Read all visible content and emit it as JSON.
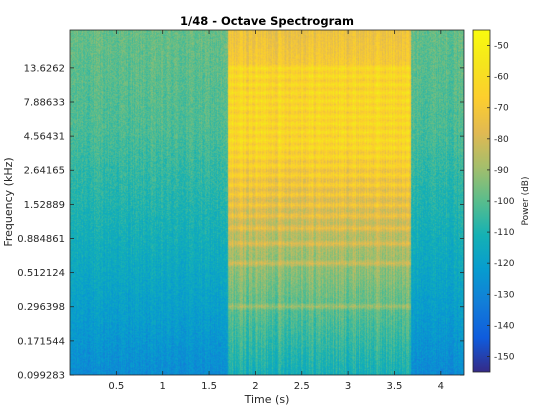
{
  "chart_data": {
    "type": "heatmap",
    "title": "1/48 - Octave Spectrogram",
    "xlabel": "Time (s)",
    "ylabel": "Frequency (kHz)",
    "xlim": [
      0,
      4.25
    ],
    "xticks": [
      {
        "value": 0.5,
        "label": "0.5"
      },
      {
        "value": 1,
        "label": "1"
      },
      {
        "value": 1.5,
        "label": "1.5"
      },
      {
        "value": 2,
        "label": "2"
      },
      {
        "value": 2.5,
        "label": "2.5"
      },
      {
        "value": 3,
        "label": "3"
      },
      {
        "value": 3.5,
        "label": "3.5"
      },
      {
        "value": 4,
        "label": "4"
      }
    ],
    "y_scale": "log",
    "ylim": [
      0.099283,
      25
    ],
    "yticks": [
      {
        "value": 0.099283,
        "label": "0.099283"
      },
      {
        "value": 0.171544,
        "label": "0.171544"
      },
      {
        "value": 0.296398,
        "label": "0.296398"
      },
      {
        "value": 0.512124,
        "label": "0.512124"
      },
      {
        "value": 0.884861,
        "label": "0.884861"
      },
      {
        "value": 1.52889,
        "label": "1.52889"
      },
      {
        "value": 2.64165,
        "label": "2.64165"
      },
      {
        "value": 4.56431,
        "label": "4.56431"
      },
      {
        "value": 7.88633,
        "label": "7.88633"
      },
      {
        "value": 13.6262,
        "label": "13.6262"
      }
    ],
    "colorbar": {
      "label": "Power (dB)",
      "range": [
        -155,
        -45
      ],
      "colormap": "parula",
      "ticks": [
        {
          "value": -50,
          "label": "-50"
        },
        {
          "value": -60,
          "label": "-60"
        },
        {
          "value": -70,
          "label": "-70"
        },
        {
          "value": -80,
          "label": "-80"
        },
        {
          "value": -90,
          "label": "-90"
        },
        {
          "value": -100,
          "label": "-100"
        },
        {
          "value": -110,
          "label": "-110"
        },
        {
          "value": -120,
          "label": "-120"
        },
        {
          "value": -130,
          "label": "-130"
        },
        {
          "value": -140,
          "label": "-140"
        },
        {
          "value": -150,
          "label": "-150"
        }
      ]
    },
    "regions": [
      {
        "t_start": 0,
        "t_end": 1.7,
        "description": "background noise, roughly -125 dB at low frequency rising to about -95 dB near 5-10 kHz"
      },
      {
        "t_start": 1.7,
        "t_end": 3.67,
        "description": "loud harmonic signal, about -60 to -75 dB with harmonic bands between 0.5 and 15 kHz"
      },
      {
        "t_start": 3.67,
        "t_end": 4.25,
        "description": "background noise similar to the first segment"
      }
    ],
    "harmonic_bands_khz": [
      0.3,
      0.6,
      0.82,
      1.05,
      1.28,
      1.52,
      1.8,
      2.1,
      2.45,
      2.85,
      3.3,
      3.8,
      4.3,
      4.9,
      5.6,
      6.3,
      7.2,
      8.1,
      9.2,
      10.5,
      12,
      13.6
    ]
  }
}
